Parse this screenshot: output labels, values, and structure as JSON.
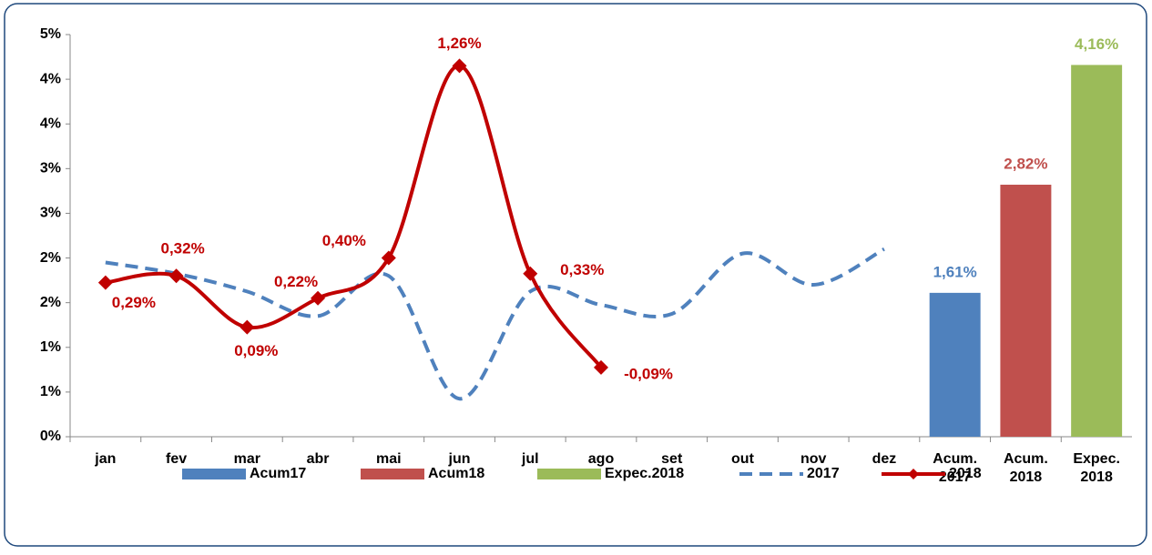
{
  "chart_data": {
    "type": "combo",
    "categories": [
      "jan",
      "fev",
      "mar",
      "abr",
      "mai",
      "jun",
      "jul",
      "ago",
      "set",
      "out",
      "nov",
      "dez",
      "Acum. 2017",
      "Acum. 2018",
      "Expec. 2018"
    ],
    "ylim": [
      0,
      4.5
    ],
    "yticks": [
      {
        "value": 0,
        "label": "0%"
      },
      {
        "value": 0.5,
        "label": "1%"
      },
      {
        "value": 1,
        "label": "1%"
      },
      {
        "value": 1.5,
        "label": "2%"
      },
      {
        "value": 2,
        "label": "2%"
      },
      {
        "value": 2.5,
        "label": "3%"
      },
      {
        "value": 3,
        "label": "3%"
      },
      {
        "value": 3.5,
        "label": "4%"
      },
      {
        "value": 4,
        "label": "4%"
      },
      {
        "value": 4.5,
        "label": "5%"
      }
    ],
    "y2lim": [
      -0.4,
      1.4
    ],
    "series": [
      {
        "name": "Acum17",
        "type": "bar",
        "color": "#4f81bd",
        "values": [
          null,
          null,
          null,
          null,
          null,
          null,
          null,
          null,
          null,
          null,
          null,
          null,
          1.61,
          null,
          null
        ],
        "value_labels": [
          null,
          null,
          null,
          null,
          null,
          null,
          null,
          null,
          null,
          null,
          null,
          null,
          "1,61%",
          null,
          null
        ]
      },
      {
        "name": "Acum18",
        "type": "bar",
        "color": "#c0504d",
        "values": [
          null,
          null,
          null,
          null,
          null,
          null,
          null,
          null,
          null,
          null,
          null,
          null,
          null,
          2.82,
          null
        ],
        "value_labels": [
          null,
          null,
          null,
          null,
          null,
          null,
          null,
          null,
          null,
          null,
          null,
          null,
          null,
          "2,82%",
          null
        ]
      },
      {
        "name": "Expec.2018",
        "type": "bar",
        "color": "#9bbb59",
        "values": [
          null,
          null,
          null,
          null,
          null,
          null,
          null,
          null,
          null,
          null,
          null,
          null,
          null,
          null,
          4.16
        ],
        "value_labels": [
          null,
          null,
          null,
          null,
          null,
          null,
          null,
          null,
          null,
          null,
          null,
          null,
          null,
          null,
          "4,16%"
        ]
      },
      {
        "name": "2017",
        "type": "line",
        "axis": "y2",
        "dashed": true,
        "color": "#4f81bd",
        "values": [
          0.38,
          0.33,
          0.25,
          0.14,
          0.32,
          -0.23,
          0.25,
          0.19,
          0.15,
          0.42,
          0.28,
          0.44,
          null,
          null,
          null
        ]
      },
      {
        "name": "2018",
        "type": "line",
        "axis": "y2",
        "markers": true,
        "color": "#c00000",
        "values": [
          0.29,
          0.32,
          0.09,
          0.22,
          0.4,
          1.26,
          0.33,
          -0.09,
          null,
          null,
          null,
          null,
          null,
          null,
          null
        ],
        "value_labels": [
          "0,29%",
          "0,32%",
          "0,09%",
          "0,22%",
          "0,40%",
          "1,26%",
          "0,33%",
          "-0,09%",
          null,
          null,
          null,
          null,
          null,
          null,
          null
        ]
      }
    ]
  }
}
